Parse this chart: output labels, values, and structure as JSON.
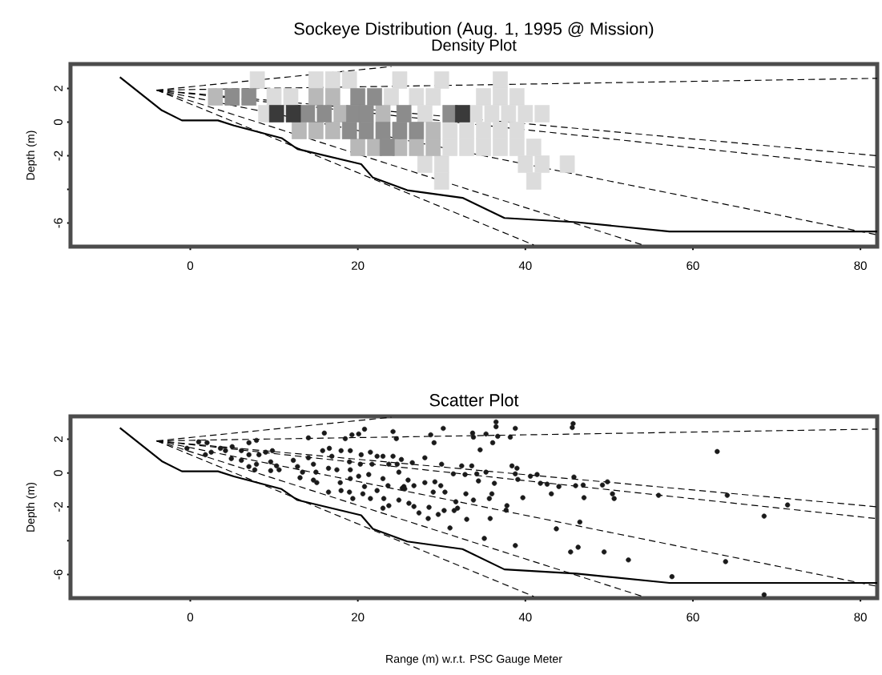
{
  "chart_data": [
    {
      "type": "scatter",
      "title": "Sockeye Distribution (Aug. 1, 1995 @ Mission)",
      "subtitle": "Density Plot",
      "ylabel": "Depth (m)",
      "xlim": [
        -14.3,
        82
      ],
      "ylim": [
        -7.4,
        3.45
      ],
      "xticks": [
        0,
        20,
        40,
        60,
        80
      ],
      "yticks": [
        2,
        0,
        -2,
        {
          "value": -4,
          "label": null
        },
        -6
      ],
      "series": [
        {
          "marker": "square",
          "color": "#dcdcdc",
          "x": [
            8,
            15,
            17,
            19,
            25,
            30,
            37,
            10,
            12,
            24,
            27,
            29,
            35,
            37,
            39,
            9,
            28,
            34,
            36,
            38,
            40,
            42,
            31,
            33,
            35,
            37,
            39,
            31,
            33,
            35,
            37,
            39,
            41,
            28,
            30,
            40,
            42,
            45,
            30,
            41
          ],
          "values": [
            2.5,
            2.5,
            2.5,
            2.5,
            2.5,
            2.5,
            2.5,
            1.5,
            1.5,
            1.5,
            1.5,
            1.5,
            1.5,
            1.5,
            1.5,
            0.5,
            0.5,
            0.5,
            0.5,
            0.5,
            0.5,
            0.5,
            -0.5,
            -0.5,
            -0.5,
            -0.5,
            -0.5,
            -1.5,
            -1.5,
            -1.5,
            -1.5,
            -1.5,
            -1.5,
            -2.5,
            -2.5,
            -2.5,
            -2.5,
            -2.5,
            -3.5,
            -3.5
          ]
        },
        {
          "marker": "square",
          "color": "#b8b8b8",
          "x": [
            3,
            15,
            17,
            18,
            23,
            13,
            15,
            17,
            29,
            20,
            22,
            25,
            27,
            29
          ],
          "values": [
            1.5,
            1.5,
            1.5,
            0.5,
            0.5,
            -0.5,
            -0.5,
            -0.5,
            -0.5,
            -1.5,
            -1.5,
            -1.5,
            -1.5,
            -1.5
          ]
        },
        {
          "marker": "square",
          "color": "#8c8c8c",
          "x": [
            5,
            7,
            20,
            22,
            14,
            16,
            19.5,
            21,
            25.5,
            31,
            19,
            21,
            23,
            25,
            27,
            23.5
          ],
          "values": [
            1.5,
            1.5,
            1.5,
            1.5,
            0.5,
            0.5,
            0.5,
            0.5,
            0.5,
            0.5,
            -0.5,
            -0.5,
            -0.5,
            -0.5,
            -0.5,
            -1.5
          ]
        },
        {
          "marker": "square",
          "color": "#3a3a3a",
          "x": [
            10.3,
            12.3,
            32.5
          ],
          "values": [
            0.5,
            0.5,
            0.5
          ]
        },
        {
          "type": "line",
          "line_style": "solid",
          "color": "#000000",
          "x": [
            -8.4,
            -3.4,
            -1,
            3.3,
            5.2,
            10.9,
            12.8,
            20.4,
            21.8,
            25.9,
            32.5,
            37.5,
            46.1,
            57.2,
            82
          ],
          "values": [
            2.67,
            0.7,
            0.1,
            0.1,
            -0.2,
            -0.95,
            -1.6,
            -2.5,
            -3.3,
            -4.05,
            -4.5,
            -5.7,
            -5.95,
            -6.5,
            -6.5
          ]
        },
        {
          "type": "line",
          "line_style": "dashed",
          "color": "#000000",
          "x": [
            -4,
            24
          ],
          "values": [
            1.9,
            3.3
          ]
        },
        {
          "type": "line",
          "line_style": "dashed",
          "color": "#000000",
          "x": [
            -4,
            82
          ],
          "values": [
            1.9,
            2.6
          ]
        },
        {
          "type": "line",
          "line_style": "dashed",
          "color": "#000000",
          "x": [
            -4,
            82
          ],
          "values": [
            1.9,
            -2.0
          ]
        },
        {
          "type": "line",
          "line_style": "dashed",
          "color": "#000000",
          "x": [
            -4,
            82
          ],
          "values": [
            1.9,
            -2.7
          ]
        },
        {
          "type": "line",
          "line_style": "dashed",
          "color": "#000000",
          "x": [
            -4,
            82
          ],
          "values": [
            1.9,
            -6.7
          ]
        },
        {
          "type": "line",
          "line_style": "dashed",
          "color": "#000000",
          "x": [
            -4,
            54
          ],
          "values": [
            1.9,
            -7.3
          ]
        },
        {
          "type": "line",
          "line_style": "dashed",
          "color": "#000000",
          "x": [
            -4,
            41
          ],
          "values": [
            1.9,
            -7.3
          ]
        }
      ]
    },
    {
      "type": "scatter",
      "title": "Scatter Plot",
      "xlabel": "Range (m) w.r.t. PSC Gauge Meter",
      "ylabel": "Depth (m)",
      "xlim": [
        -14.3,
        82
      ],
      "ylim": [
        -7.4,
        3.35
      ],
      "xticks": [
        0,
        20,
        40,
        60,
        80
      ],
      "yticks": [
        2,
        0,
        -2,
        {
          "value": -4,
          "label": null
        },
        -6
      ],
      "series": [
        {
          "marker": "circle",
          "color": "#1a1a1a",
          "x": [
            -0.4,
            1.0,
            2.0,
            2.5,
            1.8,
            3.6,
            4.2,
            5.0,
            4.9,
            6.1,
            7.0,
            7.9,
            7.0,
            6.1,
            7.0,
            7.7,
            7.9,
            8.2,
            9.0,
            9.8,
            9.6,
            10.3,
            9.6,
            10.6,
            12.3,
            12.8,
            13.4,
            13.1,
            14.1,
            14.7,
            15.0,
            14.7,
            15.1,
            15.8,
            16.6,
            16.9,
            16.5,
            16.5,
            17.5,
            18.0,
            17.9,
            18.0,
            19.1,
            19.0,
            19.1,
            19.1,
            19.0,
            19.4,
            20.4,
            20.3,
            20.1,
            20.8,
            20.6,
            21.5,
            21.7,
            21.3,
            21.5,
            22.3,
            22.3,
            23.0,
            23.0,
            23.1,
            23.7,
            23.6,
            23.7,
            24.2,
            24.7,
            24.9,
            24.9,
            23.0,
            25.5,
            14.1,
            16.0,
            18.5,
            19.3,
            20.1,
            20.8,
            24.2,
            24.6,
            25.2,
            26.5,
            28.0,
            30.0,
            32.4,
            33.6,
            31.4,
            32.8,
            34.2,
            34.4,
            25.3,
            62.9,
            64.1,
            71.3,
            68.5,
            55.9,
            63.9,
            57.5,
            52.3,
            49.4,
            46.3,
            45.4,
            43.7,
            46.5,
            50.4,
            50.6,
            47.0,
            49.8,
            49.2,
            46.9,
            46.0,
            45.8,
            44.0,
            43.1,
            41.8,
            42.6,
            41.4,
            40.6,
            39.7,
            39.1,
            38.8,
            39.0,
            38.4,
            37.8,
            37.7,
            38.8,
            35.1,
            35.8,
            35.7,
            36.0,
            36.3,
            35.3,
            33.0,
            33.8,
            32.9,
            31.7,
            31.9,
            31.5,
            31.0,
            30.3,
            29.6,
            28.4,
            27.3,
            28.5,
            30.4,
            29.0,
            29.9,
            29.2,
            28.0,
            26.7,
            26.0,
            25.6,
            26.1,
            26.7,
            28.7,
            29.1,
            30.2,
            33.7,
            33.8,
            35.3,
            34.6,
            36.1,
            36.5,
            36.5,
            36.7,
            38.2,
            38.8,
            45.6,
            45.7,
            68.5
          ],
          "values": [
            1.46,
            1.84,
            1.79,
            1.23,
            1.08,
            1.46,
            1.32,
            1.56,
            0.85,
            1.32,
            1.79,
            1.93,
            1.08,
            0.75,
            0.38,
            0.19,
            0.52,
            1.08,
            1.23,
            1.32,
            0.66,
            0.42,
            0.14,
            0.19,
            0.75,
            0.38,
            0.05,
            -0.28,
            0.9,
            0.52,
            0.05,
            -0.42,
            -0.57,
            1.32,
            1.46,
            0.99,
            0.28,
            -1.13,
            0.19,
            1.32,
            -0.57,
            -1.04,
            1.32,
            0.66,
            0.19,
            -0.33,
            -1.13,
            -1.51,
            1.08,
            0.52,
            -0.19,
            -0.8,
            -1.23,
            1.23,
            0.52,
            -0.09,
            -1.51,
            0.99,
            -1.04,
            0.99,
            -0.33,
            -1.51,
            0.52,
            -0.75,
            -1.93,
            0.99,
            0.52,
            0.05,
            -1.6,
            -2.08,
            -0.8,
            2.08,
            2.36,
            2.03,
            2.26,
            2.31,
            2.59,
            2.45,
            2.03,
            0.8,
            0.61,
            0.9,
            0.52,
            0.42,
            0.42,
            -0.05,
            -0.09,
            -0.05,
            -0.47,
            -0.9,
            1.27,
            -1.32,
            -1.89,
            -2.55,
            -1.32,
            -5.24,
            -6.13,
            -5.14,
            -4.67,
            -4.39,
            -4.67,
            -3.3,
            -2.9,
            -1.23,
            -1.51,
            -1.46,
            -0.52,
            -0.71,
            -0.71,
            -0.75,
            -0.24,
            -0.8,
            -1.23,
            -0.61,
            -0.66,
            -0.09,
            -0.19,
            -1.46,
            -0.38,
            -0.05,
            0.28,
            0.42,
            -1.93,
            -2.2,
            -4.29,
            -3.87,
            -2.69,
            -1.51,
            -1.23,
            -0.61,
            0.05,
            -2.74,
            -1.6,
            -1.23,
            -1.7,
            -2.08,
            -2.22,
            -3.25,
            -2.22,
            -2.45,
            -2.69,
            -2.36,
            -2.03,
            -1.13,
            -1.13,
            -0.75,
            -0.52,
            -0.57,
            -0.75,
            -0.42,
            -0.94,
            -1.79,
            -1.98,
            2.26,
            1.79,
            2.64,
            2.36,
            2.12,
            2.31,
            1.37,
            1.79,
            3.02,
            2.74,
            2.17,
            2.12,
            2.64,
            2.69,
            2.92,
            -7.2
          ]
        },
        {
          "type": "line",
          "line_style": "solid",
          "color": "#000000",
          "x": [
            -8.4,
            -3.4,
            -1,
            3.3,
            5.2,
            10.9,
            12.8,
            20.4,
            21.8,
            25.9,
            32.5,
            37.5,
            46.1,
            57.2,
            82
          ],
          "values": [
            2.67,
            0.7,
            0.1,
            0.1,
            -0.2,
            -0.95,
            -1.6,
            -2.5,
            -3.3,
            -4.05,
            -4.5,
            -5.7,
            -5.95,
            -6.5,
            -6.5
          ]
        },
        {
          "type": "line",
          "line_style": "dashed",
          "color": "#000000",
          "x": [
            -4,
            24
          ],
          "values": [
            1.9,
            3.3
          ]
        },
        {
          "type": "line",
          "line_style": "dashed",
          "color": "#000000",
          "x": [
            -4,
            82
          ],
          "values": [
            1.9,
            2.6
          ]
        },
        {
          "type": "line",
          "line_style": "dashed",
          "color": "#000000",
          "x": [
            -4,
            82
          ],
          "values": [
            1.9,
            -2.0
          ]
        },
        {
          "type": "line",
          "line_style": "dashed",
          "color": "#000000",
          "x": [
            -4,
            82
          ],
          "values": [
            1.9,
            -2.7
          ]
        },
        {
          "type": "line",
          "line_style": "dashed",
          "color": "#000000",
          "x": [
            -4,
            82
          ],
          "values": [
            1.9,
            -6.7
          ]
        },
        {
          "type": "line",
          "line_style": "dashed",
          "color": "#000000",
          "x": [
            -4,
            54
          ],
          "values": [
            1.9,
            -7.3
          ]
        },
        {
          "type": "line",
          "line_style": "dashed",
          "color": "#000000",
          "x": [
            -4,
            41
          ],
          "values": [
            1.9,
            -7.3
          ]
        }
      ]
    }
  ]
}
